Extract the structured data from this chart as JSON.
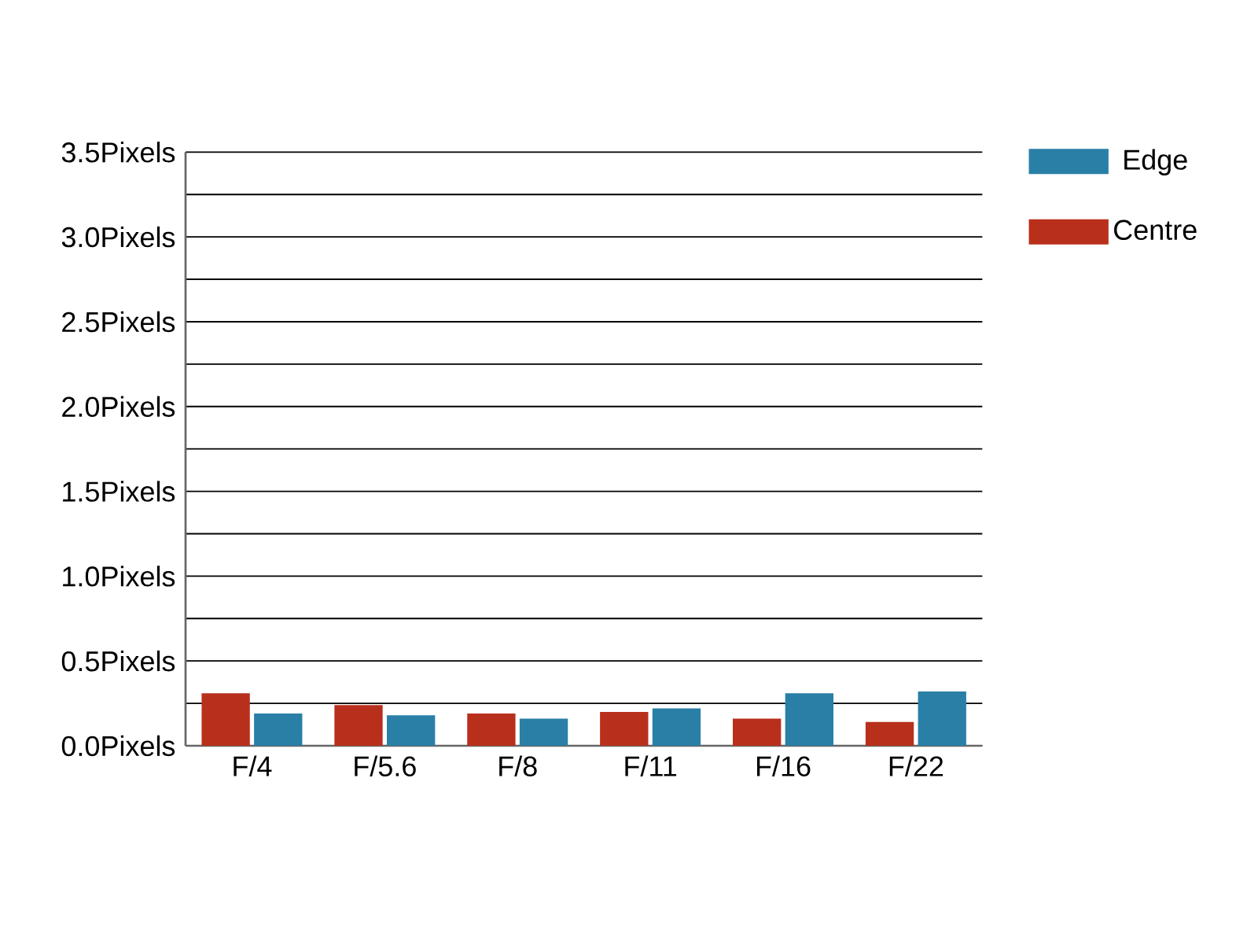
{
  "chart_data": {
    "type": "bar",
    "categories": [
      "F/4",
      "F/5.6",
      "F/8",
      "F/11",
      "F/16",
      "F/22"
    ],
    "series": [
      {
        "name": "Centre",
        "color": "#b8301c",
        "values": [
          0.31,
          0.24,
          0.19,
          0.2,
          0.16,
          0.14
        ]
      },
      {
        "name": "Edge",
        "color": "#2a7fa6",
        "values": [
          0.19,
          0.18,
          0.16,
          0.22,
          0.31,
          0.32
        ]
      }
    ],
    "ylim": [
      0,
      3.5
    ],
    "yticks": [
      {
        "value": 0,
        "label": "0.0Pixels"
      },
      {
        "value": 0.25,
        "label": null
      },
      {
        "value": 0.5,
        "label": "0.5Pixels"
      },
      {
        "value": 0.75,
        "label": null
      },
      {
        "value": 1.0,
        "label": "1.0Pixels"
      },
      {
        "value": 1.25,
        "label": null
      },
      {
        "value": 1.5,
        "label": "1.5Pixels"
      },
      {
        "value": 1.75,
        "label": null
      },
      {
        "value": 2.0,
        "label": "2.0Pixels"
      },
      {
        "value": 2.25,
        "label": null
      },
      {
        "value": 2.5,
        "label": "2.5Pixels"
      },
      {
        "value": 2.75,
        "label": null
      },
      {
        "value": 3.0,
        "label": "3.0Pixels"
      },
      {
        "value": 3.25,
        "label": null
      },
      {
        "value": 3.5,
        "label": "3.5Pixels"
      }
    ],
    "grid": "y",
    "legend": "top right"
  }
}
